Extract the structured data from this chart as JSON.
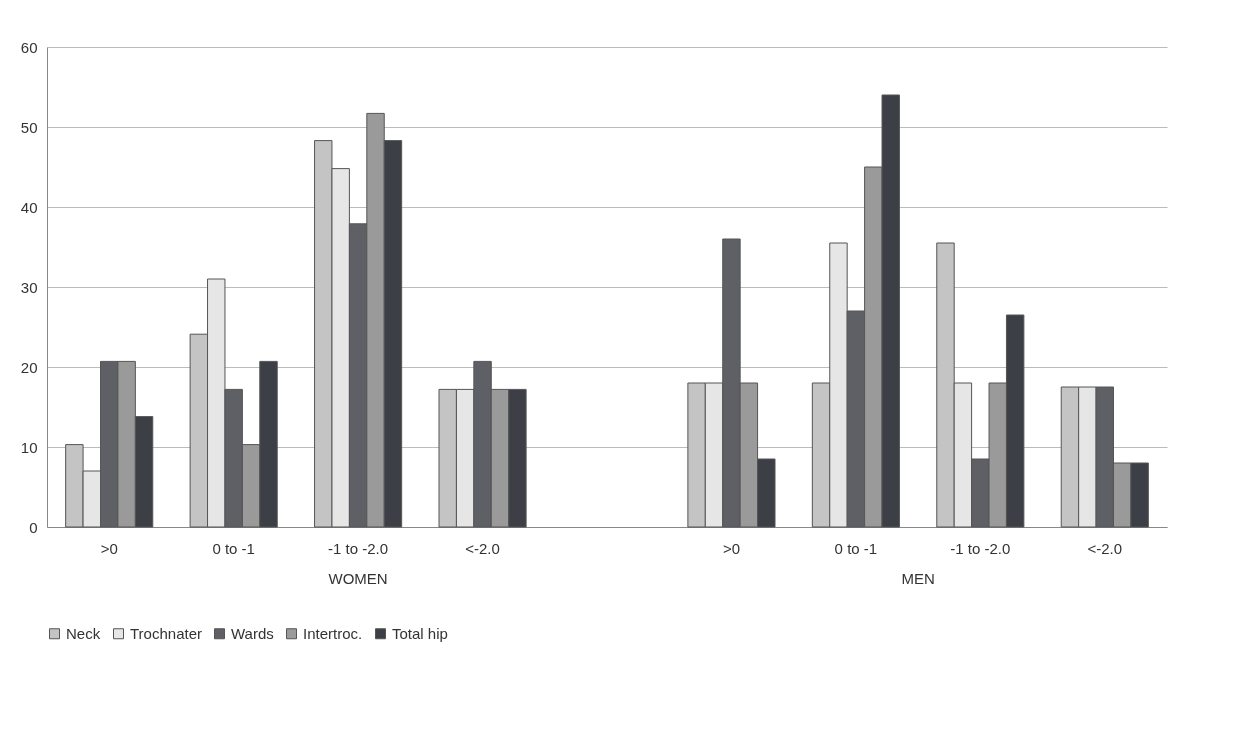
{
  "chart_data": {
    "type": "bar",
    "categories": [
      ">0",
      "0 to -1",
      "-1 to -2.0",
      "<-2.0",
      null,
      ">0",
      "0 to -1",
      "-1 to -2.0",
      "<-2.0"
    ],
    "series": [
      {
        "name": "Neck",
        "color": "#c4c4c4",
        "values": [
          10.3,
          24.1,
          48.3,
          17.2,
          null,
          18,
          18,
          35.5,
          17.5
        ]
      },
      {
        "name": "Trochnater",
        "color": "#e6e6e6",
        "values": [
          7,
          31,
          44.8,
          17.2,
          null,
          18,
          35.5,
          18,
          17.5
        ]
      },
      {
        "name": "Wards",
        "color": "#5e6066",
        "values": [
          20.7,
          17.2,
          37.9,
          20.7,
          null,
          36,
          27,
          8.5,
          17.5
        ]
      },
      {
        "name": "Intertroc.",
        "color": "#9a9a9a",
        "values": [
          20.7,
          10.3,
          51.7,
          17.2,
          null,
          18,
          45,
          18,
          8
        ]
      },
      {
        "name": "Total hip",
        "color": "#3c3f45",
        "values": [
          13.8,
          20.7,
          48.3,
          17.2,
          null,
          8.5,
          54,
          26.5,
          8
        ]
      }
    ],
    "annotations": [
      "WOMEN",
      "MEN"
    ],
    "ylim": [
      0,
      60
    ],
    "yticks": [
      0,
      10,
      20,
      30,
      40,
      50,
      60
    ],
    "grid": "y",
    "legend": "bottom"
  }
}
